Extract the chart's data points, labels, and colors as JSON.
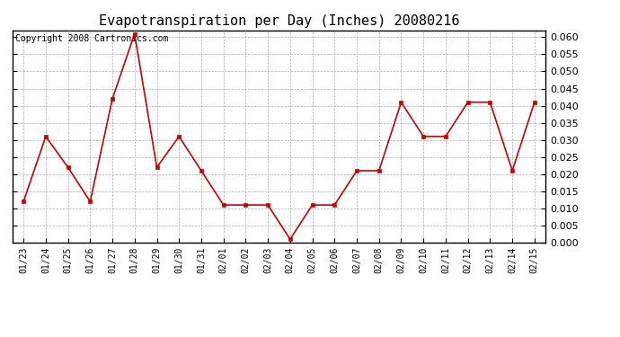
{
  "title": "Evapotranspiration per Day (Inches) 20080216",
  "copyright_text": "Copyright 2008 Cartronics.com",
  "dates": [
    "01/23",
    "01/24",
    "01/25",
    "01/26",
    "01/27",
    "01/28",
    "01/29",
    "01/30",
    "01/31",
    "02/01",
    "02/02",
    "02/03",
    "02/04",
    "02/05",
    "02/06",
    "02/07",
    "02/08",
    "02/09",
    "02/10",
    "02/11",
    "02/12",
    "02/13",
    "02/14",
    "02/15"
  ],
  "values": [
    0.012,
    0.031,
    0.022,
    0.012,
    0.042,
    0.061,
    0.022,
    0.031,
    0.021,
    0.011,
    0.011,
    0.011,
    0.001,
    0.011,
    0.011,
    0.021,
    0.021,
    0.041,
    0.031,
    0.031,
    0.041,
    0.041,
    0.021,
    0.041
  ],
  "line_color": "#cc0000",
  "marker": "s",
  "marker_size": 3,
  "ylim": [
    0.0,
    0.062
  ],
  "yticks": [
    0.0,
    0.005,
    0.01,
    0.015,
    0.02,
    0.025,
    0.03,
    0.035,
    0.04,
    0.045,
    0.05,
    0.055,
    0.06
  ],
  "background_color": "#ffffff",
  "grid_color": "#aaaaaa",
  "title_fontsize": 11,
  "copyright_fontsize": 7,
  "tick_fontsize": 7,
  "ytick_fontsize": 8
}
